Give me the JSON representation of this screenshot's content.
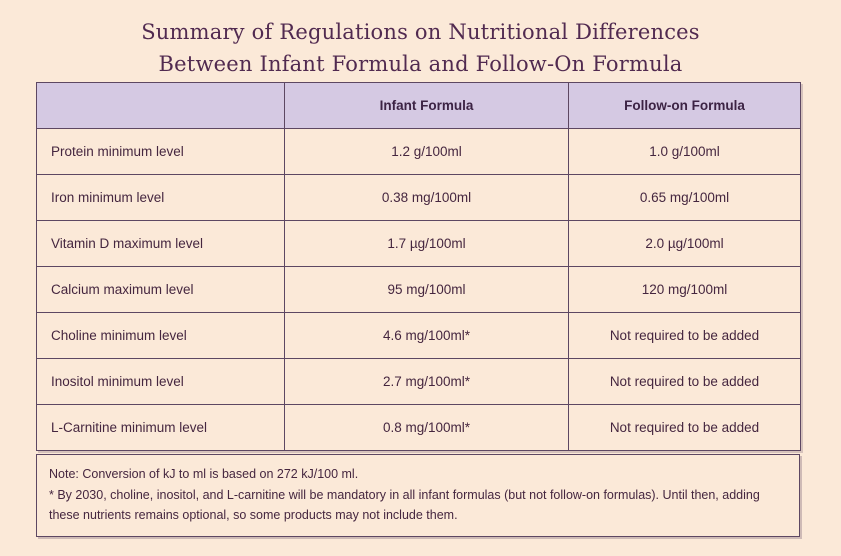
{
  "title": {
    "line1": "Summary of Regulations on Nutritional Differences",
    "line2": "Between Infant Formula and Follow-On Formula"
  },
  "table": {
    "columns": [
      "",
      "Infant Formula",
      "Follow-on Formula"
    ],
    "rows": [
      {
        "label": "Protein minimum level",
        "infant": "1.2 g/100ml",
        "follow_on": "1.0 g/100ml"
      },
      {
        "label": "Iron minimum level",
        "infant": "0.38 mg/100ml",
        "follow_on": "0.65 mg/100ml"
      },
      {
        "label": "Vitamin D maximum level",
        "infant": "1.7 µg/100ml",
        "follow_on": "2.0 µg/100ml"
      },
      {
        "label": "Calcium maximum level",
        "infant": "95 mg/100ml",
        "follow_on": "120 mg/100ml"
      },
      {
        "label": "Choline minimum level",
        "infant": "4.6 mg/100ml*",
        "follow_on": "Not required to be added"
      },
      {
        "label": "Inositol minimum level",
        "infant": "2.7 mg/100ml*",
        "follow_on": "Not required to be added"
      },
      {
        "label": "L-Carnitine minimum level",
        "infant": "0.8 mg/100ml*",
        "follow_on": "Not required to be added"
      }
    ]
  },
  "note": {
    "line1": "Note: Conversion of kJ to ml is based on 272 kJ/100 ml.",
    "line2": "* By 2030, choline, inositol, and L-carnitine will be mandatory in all infant formulas (but not follow-on formulas). Until then, adding these nutrients remains optional, so some products may not include them."
  },
  "colors": {
    "page_background": "#fbe9d8",
    "header_background": "#d5c9e3",
    "border": "#5d4762",
    "title_text": "#512a50",
    "body_text": "#45263f"
  }
}
